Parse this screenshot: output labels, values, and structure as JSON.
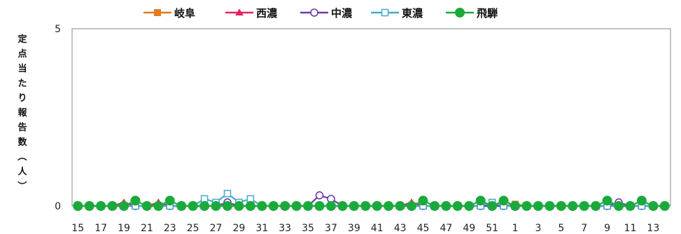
{
  "chart_data": {
    "type": "line",
    "title": "",
    "xlabel": "",
    "ylabel": "定点当たり報告数（人）",
    "ylim": [
      0,
      5
    ],
    "y_ticks": [
      "0",
      "5"
    ],
    "grid": false,
    "legend_position": "top",
    "categories": [
      "15",
      "16",
      "17",
      "18",
      "19",
      "20",
      "21",
      "22",
      "23",
      "24",
      "25",
      "26",
      "27",
      "28",
      "29",
      "30",
      "31",
      "32",
      "33",
      "34",
      "35",
      "36",
      "37",
      "38",
      "39",
      "40",
      "41",
      "42",
      "43",
      "44",
      "45",
      "46",
      "47",
      "48",
      "49",
      "50",
      "51",
      "52",
      "1",
      "2",
      "3",
      "4",
      "5",
      "6",
      "7",
      "8",
      "9",
      "10",
      "11",
      "12",
      "13",
      "14"
    ],
    "x_tick_labels": [
      "15",
      "17",
      "19",
      "21",
      "23",
      "25",
      "27",
      "29",
      "31",
      "33",
      "35",
      "37",
      "39",
      "41",
      "43",
      "45",
      "47",
      "49",
      "51",
      "1",
      "3",
      "5",
      "7",
      "9",
      "11",
      "13"
    ],
    "series": [
      {
        "name": "岐阜",
        "color": "#e07b20",
        "marker": "square-filled",
        "values": [
          0,
          0,
          0,
          0,
          0,
          0,
          0,
          0,
          0,
          0,
          0,
          0,
          0,
          0,
          0,
          0,
          0,
          0,
          0,
          0,
          0,
          0,
          0,
          0,
          0,
          0,
          0,
          0,
          0,
          0,
          0,
          0,
          0,
          0,
          0,
          0,
          0,
          0,
          0.05,
          0,
          0,
          0,
          0,
          0,
          0,
          0,
          0,
          0,
          0,
          0,
          0,
          0
        ]
      },
      {
        "name": "西濃",
        "color": "#e0245e",
        "marker": "triangle-filled",
        "values": [
          0,
          0,
          0,
          0,
          0.1,
          0,
          0,
          0.1,
          0,
          0,
          0,
          0,
          0,
          0,
          0,
          0,
          0,
          0,
          0,
          0,
          0,
          0,
          0,
          0,
          0,
          0,
          0,
          0,
          0,
          0.1,
          0,
          0,
          0,
          0,
          0,
          0,
          0,
          0,
          0,
          0,
          0,
          0,
          0,
          0,
          0,
          0,
          0,
          0,
          0,
          0,
          0,
          0
        ]
      },
      {
        "name": "中濃",
        "color": "#6a3bb0",
        "marker": "circle-open",
        "values": [
          0,
          0,
          0,
          0,
          0,
          0,
          0,
          0,
          0,
          0,
          0,
          0,
          0,
          0.1,
          0,
          0,
          0,
          0,
          0,
          0,
          0,
          0.3,
          0.2,
          0,
          0,
          0,
          0,
          0,
          0,
          0,
          0,
          0,
          0,
          0,
          0,
          0,
          0,
          0,
          0,
          0,
          0,
          0,
          0,
          0,
          0,
          0,
          0,
          0.1,
          0,
          0,
          0,
          0
        ]
      },
      {
        "name": "東濃",
        "color": "#46a8c8",
        "marker": "square-open",
        "values": [
          0,
          0,
          0,
          0,
          0,
          0,
          0,
          0,
          0,
          0,
          0,
          0.2,
          0.1,
          0.35,
          0.1,
          0.2,
          0,
          0,
          0,
          0,
          0,
          0,
          0,
          0,
          0,
          0,
          0,
          0,
          0,
          0,
          0,
          0,
          0,
          0,
          0,
          0,
          0.1,
          0,
          0,
          0,
          0,
          0,
          0,
          0,
          0,
          0,
          0,
          0,
          0,
          0,
          0,
          0
        ]
      },
      {
        "name": "飛騨",
        "color": "#1aaa3c",
        "marker": "circle-filled",
        "values": [
          0,
          0,
          0,
          0,
          0,
          0.15,
          0,
          0,
          0.15,
          0,
          0,
          0,
          0,
          0,
          0,
          0,
          0,
          0,
          0,
          0,
          0,
          0,
          0,
          0,
          0,
          0,
          0,
          0,
          0,
          0,
          0.15,
          0,
          0,
          0,
          0,
          0.15,
          0,
          0.15,
          0,
          0,
          0,
          0,
          0,
          0,
          0,
          0,
          0.15,
          0,
          0,
          0.15,
          0,
          0
        ]
      }
    ]
  }
}
